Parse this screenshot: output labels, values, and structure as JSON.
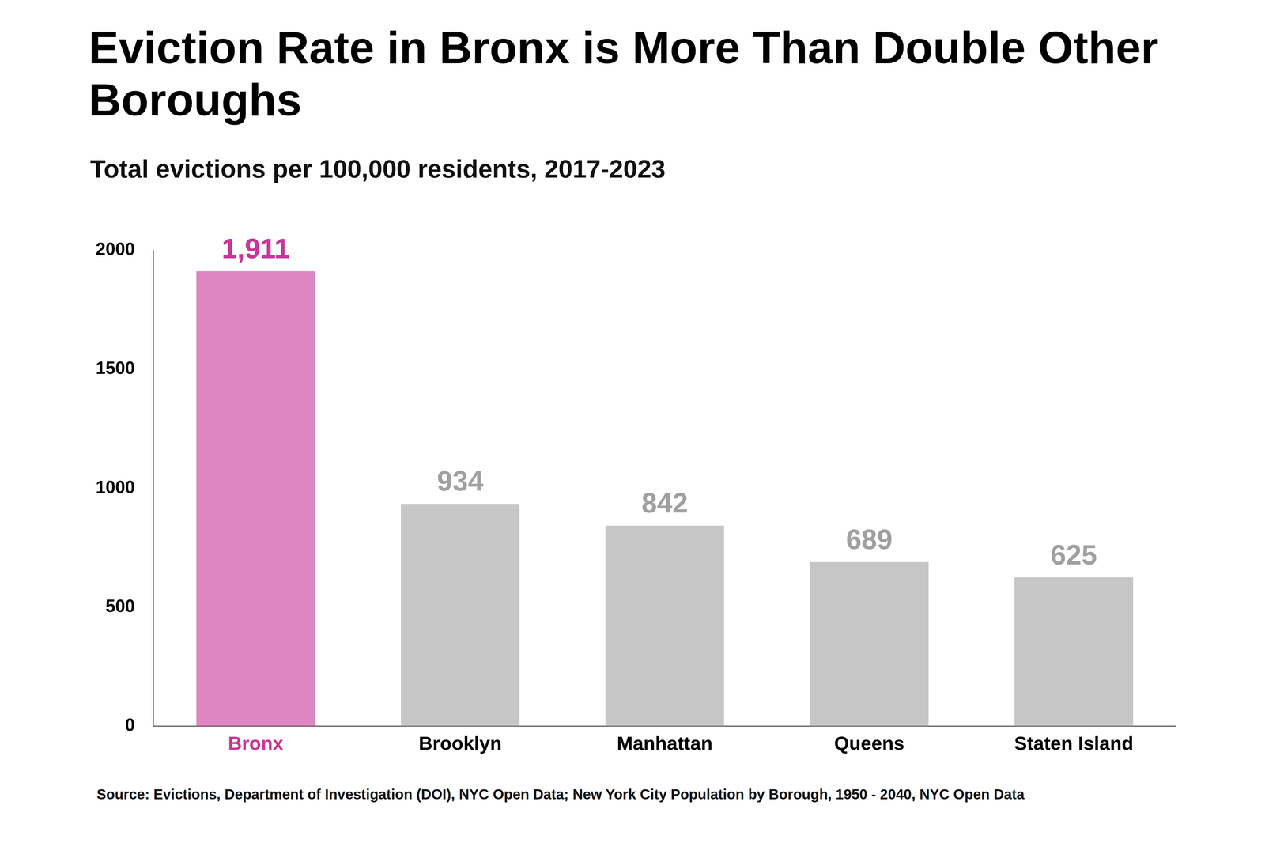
{
  "chart_data": {
    "type": "bar",
    "title": "Eviction Rate in Bronx is More Than Double Other Boroughs",
    "subtitle": "Total evictions per 100,000 residents, 2017-2023",
    "source": "Source: Evictions, Department of Investigation (DOI), NYC Open Data; New York City Population by Borough, 1950 - 2040, NYC Open Data",
    "categories": [
      "Bronx",
      "Brooklyn",
      "Manhattan",
      "Queens",
      "Staten Island"
    ],
    "values": [
      1911,
      934,
      842,
      689,
      625
    ],
    "value_labels": [
      "1,911",
      "934",
      "842",
      "689",
      "625"
    ],
    "colors": [
      "#c8359a",
      "#a0a0a0",
      "#a0a0a0",
      "#a0a0a0",
      "#a0a0a0"
    ],
    "ylim": [
      0,
      2000
    ],
    "yticks": [
      0,
      500,
      1000,
      1500,
      2000
    ],
    "grid": false,
    "data_labels": true
  }
}
